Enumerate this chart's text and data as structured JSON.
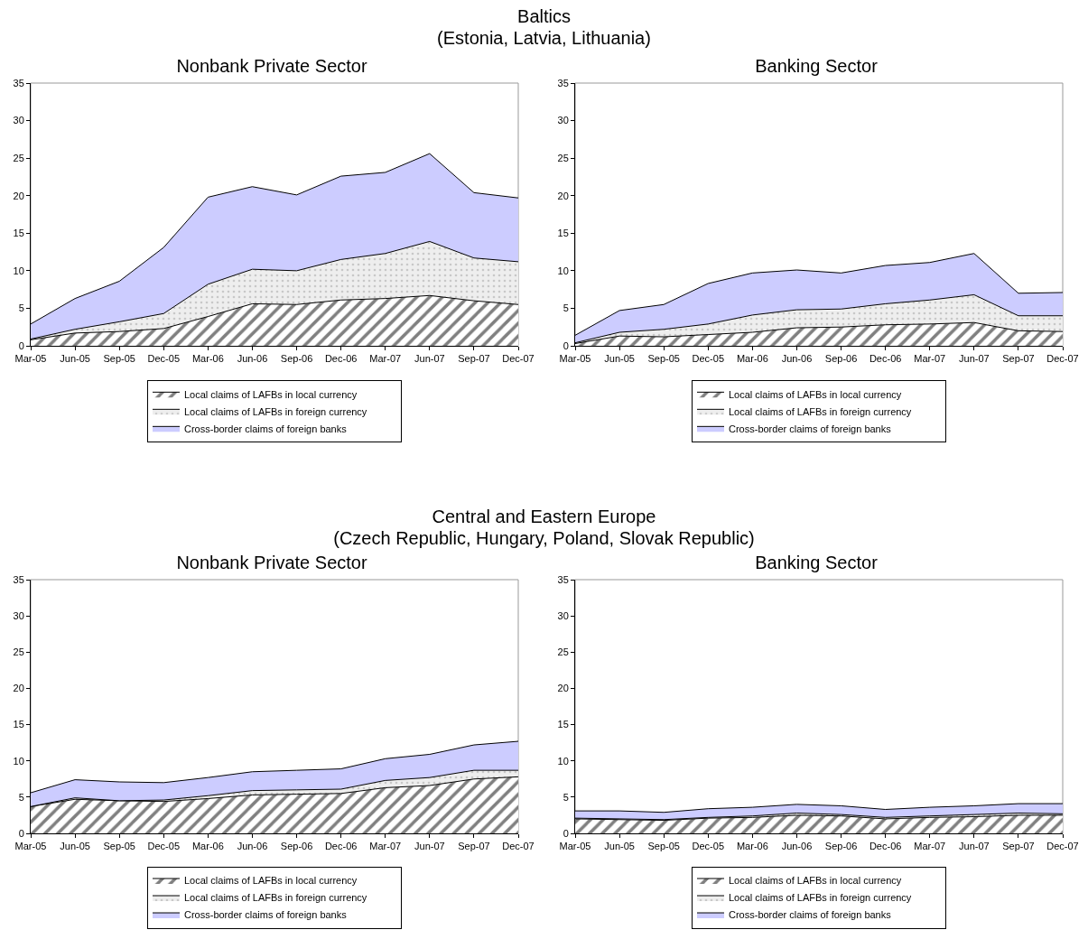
{
  "chart_data": [
    {
      "type": "area",
      "stacked": true,
      "title": "Nonbank Private Sector",
      "annotations": [
        "Baltics\n(Estonia, Latvia, Lithuania)"
      ],
      "categories": [
        "Mar-05",
        "Jun-05",
        "Sep-05",
        "Dec-05",
        "Mar-06",
        "Jun-06",
        "Sep-06",
        "Dec-06",
        "Mar-07",
        "Jun-07",
        "Sep-07",
        "Dec-07"
      ],
      "ylim": [
        0,
        35
      ],
      "yticks": [
        0,
        5,
        10,
        15,
        20,
        25,
        30,
        35
      ],
      "grid": false,
      "legend": "bottom",
      "series": [
        {
          "name": "Local claims of LAFBs in local currency",
          "color": "#999999",
          "values": [
            0.8,
            1.7,
            1.9,
            2.3,
            3.9,
            5.6,
            5.5,
            6.1,
            6.3,
            6.7,
            6.0,
            5.5
          ]
        },
        {
          "name": "Local claims of LAFBs in foreign currency",
          "color": "#eeeeee",
          "values": [
            0.1,
            0.5,
            1.3,
            2.0,
            4.3,
            4.6,
            4.5,
            5.4,
            6.0,
            7.2,
            5.7,
            5.7
          ]
        },
        {
          "name": "Cross-border claims of foreign banks",
          "color": "#ccccff",
          "values": [
            2.0,
            4.1,
            5.4,
            8.8,
            11.6,
            11.0,
            10.1,
            11.1,
            10.8,
            11.7,
            8.7,
            8.5
          ]
        }
      ]
    },
    {
      "type": "area",
      "stacked": true,
      "title": "Banking Sector",
      "categories": [
        "Mar-05",
        "Jun-05",
        "Sep-05",
        "Dec-05",
        "Mar-06",
        "Jun-06",
        "Sep-06",
        "Dec-06",
        "Mar-07",
        "Jun-07",
        "Sep-07",
        "Dec-07"
      ],
      "ylim": [
        0,
        35
      ],
      "yticks": [
        0,
        5,
        10,
        15,
        20,
        25,
        30,
        35
      ],
      "grid": false,
      "legend": "bottom",
      "series": [
        {
          "name": "Local claims of LAFBs in local currency",
          "color": "#999999",
          "values": [
            0.3,
            1.3,
            1.2,
            1.5,
            1.8,
            2.4,
            2.5,
            2.8,
            2.9,
            3.1,
            2.0,
            1.9
          ]
        },
        {
          "name": "Local claims of LAFBs in foreign currency",
          "color": "#eeeeee",
          "values": [
            0.1,
            0.5,
            1.0,
            1.4,
            2.3,
            2.4,
            2.4,
            2.8,
            3.2,
            3.7,
            2.0,
            2.1
          ]
        },
        {
          "name": "Cross-border claims of foreign banks",
          "color": "#ccccff",
          "values": [
            1.0,
            2.9,
            3.3,
            5.4,
            5.6,
            5.3,
            4.8,
            5.1,
            5.0,
            5.5,
            3.0,
            3.1
          ]
        }
      ]
    },
    {
      "type": "area",
      "stacked": true,
      "title": "Nonbank Private Sector",
      "annotations": [
        "Central and Eastern Europe\n(Czech Republic, Hungary, Poland, Slovak Republic)"
      ],
      "categories": [
        "Mar-05",
        "Jun-05",
        "Sep-05",
        "Dec-05",
        "Mar-06",
        "Jun-06",
        "Sep-06",
        "Dec-06",
        "Mar-07",
        "Jun-07",
        "Sep-07",
        "Dec-07"
      ],
      "ylim": [
        0,
        35
      ],
      "yticks": [
        0,
        5,
        10,
        15,
        20,
        25,
        30,
        35
      ],
      "grid": false,
      "legend": "bottom",
      "series": [
        {
          "name": "Local claims of LAFBs in local currency",
          "color": "#999999",
          "values": [
            3.7,
            4.7,
            4.5,
            4.4,
            4.8,
            5.3,
            5.4,
            5.5,
            6.3,
            6.6,
            7.5,
            7.8
          ]
        },
        {
          "name": "Local claims of LAFBs in foreign currency",
          "color": "#eeeeee",
          "values": [
            0.0,
            0.2,
            0.0,
            0.2,
            0.4,
            0.6,
            0.6,
            0.6,
            1.0,
            1.1,
            1.2,
            0.9
          ]
        },
        {
          "name": "Cross-border claims of foreign banks",
          "color": "#ccccff",
          "values": [
            1.9,
            2.5,
            2.6,
            2.4,
            2.5,
            2.6,
            2.7,
            2.8,
            3.0,
            3.2,
            3.5,
            4.0
          ]
        }
      ]
    },
    {
      "type": "area",
      "stacked": true,
      "title": "Banking Sector",
      "categories": [
        "Mar-05",
        "Jun-05",
        "Sep-05",
        "Dec-05",
        "Mar-06",
        "Jun-06",
        "Sep-06",
        "Dec-06",
        "Mar-07",
        "Jun-07",
        "Sep-07",
        "Dec-07"
      ],
      "ylim": [
        0,
        35
      ],
      "yticks": [
        0,
        5,
        10,
        15,
        20,
        25,
        30,
        35
      ],
      "grid": false,
      "legend": "bottom",
      "series": [
        {
          "name": "Local claims of LAFBs in local currency",
          "color": "#999999",
          "values": [
            2.0,
            1.9,
            1.8,
            2.1,
            2.2,
            2.5,
            2.4,
            2.0,
            2.2,
            2.3,
            2.5,
            2.5
          ]
        },
        {
          "name": "Local claims of LAFBs in foreign currency",
          "color": "#eeeeee",
          "values": [
            0.1,
            0.1,
            0.1,
            0.1,
            0.2,
            0.3,
            0.2,
            0.2,
            0.2,
            0.3,
            0.3,
            0.2
          ]
        },
        {
          "name": "Cross-border claims of foreign banks",
          "color": "#ccccff",
          "values": [
            1.0,
            1.1,
            1.0,
            1.2,
            1.2,
            1.2,
            1.2,
            1.1,
            1.2,
            1.2,
            1.3,
            1.4
          ]
        }
      ]
    }
  ]
}
